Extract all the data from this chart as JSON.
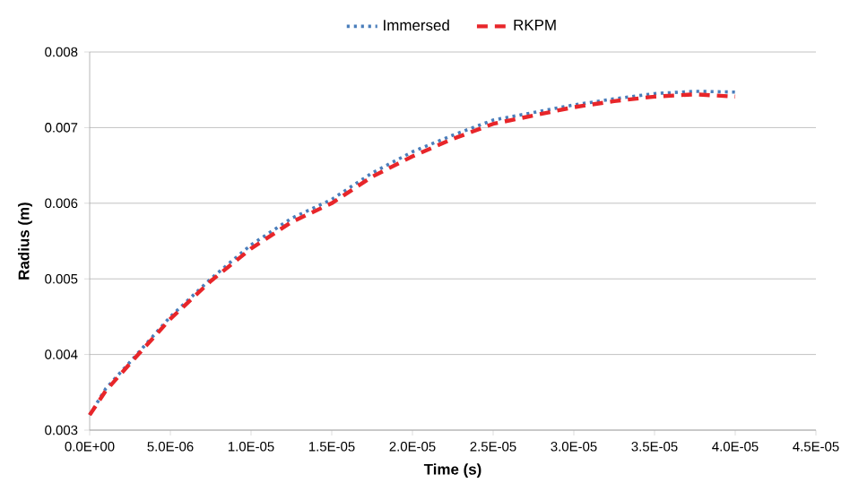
{
  "chart_data": {
    "type": "line",
    "xlabel": "Time (s)",
    "ylabel": "Radius (m)",
    "x": [
      0,
      1e-06,
      2.5e-06,
      5e-06,
      7.5e-06,
      1e-05,
      1.25e-05,
      1.5e-05,
      1.75e-05,
      2e-05,
      2.25e-05,
      2.5e-05,
      2.75e-05,
      3e-05,
      3.25e-05,
      3.5e-05,
      3.75e-05,
      4e-05
    ],
    "series": [
      {
        "name": "Immersed",
        "color": "#4a7ebb",
        "line_style": "dotted",
        "values": [
          0.0032,
          0.00355,
          0.0039,
          0.0045,
          0.005,
          0.00545,
          0.0058,
          0.00605,
          0.0064,
          0.00668,
          0.0069,
          0.0071,
          0.0072,
          0.0073,
          0.00738,
          0.00745,
          0.00748,
          0.00747
        ]
      },
      {
        "name": "RKPM",
        "color": "#e8262a",
        "line_style": "dashed",
        "values": [
          0.0032,
          0.00352,
          0.00388,
          0.00447,
          0.00497,
          0.0054,
          0.00575,
          0.006,
          0.00635,
          0.00662,
          0.00685,
          0.00705,
          0.00716,
          0.00727,
          0.00735,
          0.00741,
          0.00744,
          0.00741
        ]
      }
    ],
    "xlim": [
      0,
      4.5e-05
    ],
    "ylim": [
      0.003,
      0.008
    ],
    "xticks": [
      {
        "value": 0,
        "label": "0.0E+00"
      },
      {
        "value": 5e-06,
        "label": "5.0E-06"
      },
      {
        "value": 1e-05,
        "label": "1.0E-05"
      },
      {
        "value": 1.5e-05,
        "label": "1.5E-05"
      },
      {
        "value": 2e-05,
        "label": "2.0E-05"
      },
      {
        "value": 2.5e-05,
        "label": "2.5E-05"
      },
      {
        "value": 3e-05,
        "label": "3.0E-05"
      },
      {
        "value": 3.5e-05,
        "label": "3.5E-05"
      },
      {
        "value": 4e-05,
        "label": "4.0E-05"
      },
      {
        "value": 4.5e-05,
        "label": "4.5E-05"
      }
    ],
    "yticks": [
      0.003,
      0.004,
      0.005,
      0.006,
      0.007,
      0.008
    ],
    "grid": "y",
    "legend": "top",
    "marker": "none"
  }
}
